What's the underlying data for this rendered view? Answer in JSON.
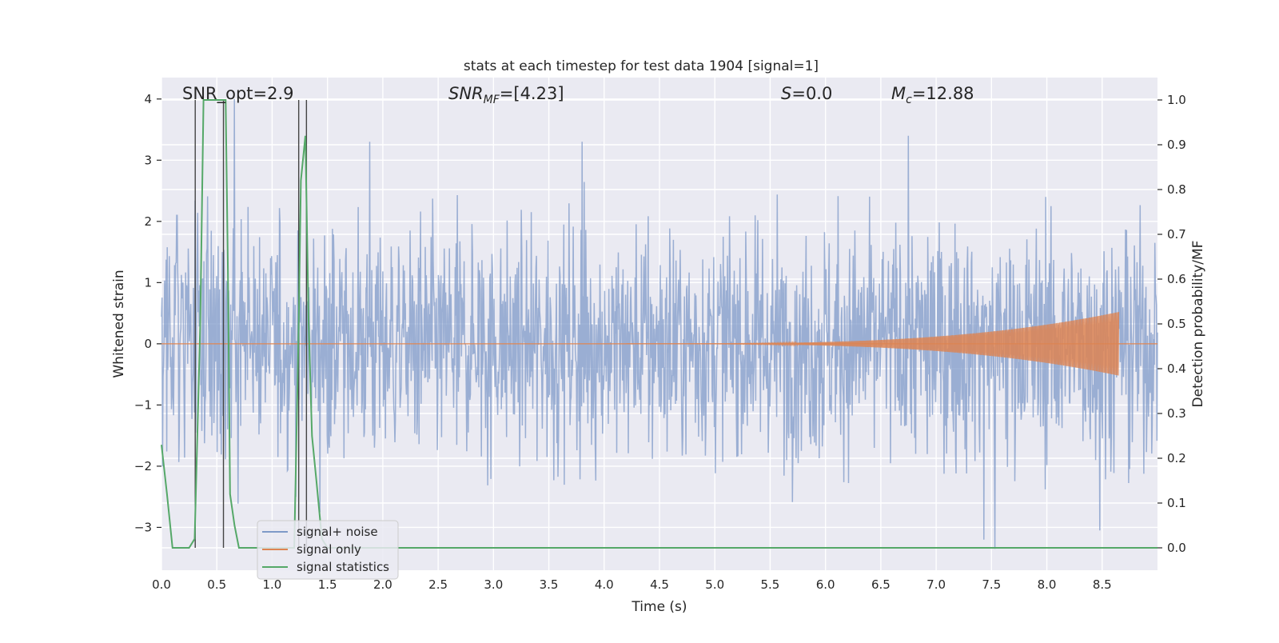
{
  "chart_data": {
    "type": "line",
    "title": "stats at each timestep for test data 1904 [signal=1]",
    "xlabel": "Time (s)",
    "ylabel_left": "Whitened strain",
    "ylabel_right": "Detection probability/MF",
    "xlim": [
      0.0,
      9.0
    ],
    "ylim_left": [
      -3.7,
      4.35
    ],
    "ylim_right": [
      -0.05,
      1.05
    ],
    "x_ticks": [
      "0.0",
      "0.5",
      "1.0",
      "1.5",
      "2.0",
      "2.5",
      "3.0",
      "3.5",
      "4.0",
      "4.5",
      "5.0",
      "5.5",
      "6.0",
      "6.5",
      "7.0",
      "7.5",
      "8.0",
      "8.5"
    ],
    "y_ticks_left": [
      "−3",
      "−2",
      "−1",
      "0",
      "1",
      "2",
      "3",
      "4"
    ],
    "y_ticks_right": [
      "0.0",
      "0.1",
      "0.2",
      "0.3",
      "0.4",
      "0.5",
      "0.6",
      "0.7",
      "0.8",
      "0.9",
      "1.0"
    ],
    "annotations": {
      "snr_opt": "SNR_opt=2.9",
      "snr_mf_prefix": "SNR",
      "snr_mf_sub": "MF",
      "snr_mf_value": "=[4.23]",
      "s_prefix": "S",
      "s_value": "=0.0",
      "mc_prefix": "M",
      "mc_sub": "c",
      "mc_value": "=12.88"
    },
    "vertical_markers_x": [
      0.305,
      0.56,
      1.24,
      1.31
    ],
    "series": [
      {
        "name": "signal+ noise",
        "color": "#7f9ac8",
        "axis": "left",
        "kind": "noise",
        "x_range": [
          0.0,
          9.0
        ],
        "noise_std": 0.95,
        "peak_times": [
          0.14,
          0.66,
          1.88,
          3.8,
          6.75,
          7.53,
          7.43,
          8.48
        ],
        "peak_values": [
          2.1,
          4.0,
          3.3,
          3.3,
          3.4,
          -3.35,
          -3.2,
          -3.05
        ]
      },
      {
        "name": "signal only",
        "color": "#dd8452",
        "axis": "left",
        "kind": "chirp",
        "start": 4.2,
        "end": 8.65,
        "max_amplitude": 0.52
      },
      {
        "name": "signal statistics",
        "color": "#55a868",
        "axis": "right",
        "kind": "line",
        "x": [
          0.0,
          0.05,
          0.1,
          0.25,
          0.3,
          0.35,
          0.38,
          0.42,
          0.5,
          0.58,
          0.6,
          0.62,
          0.66,
          0.7,
          0.75,
          1.0,
          1.2,
          1.24,
          1.26,
          1.3,
          1.33,
          1.36,
          1.4,
          1.45,
          1.5,
          9.0
        ],
        "y": [
          0.23,
          0.12,
          0.0,
          0.0,
          0.02,
          0.5,
          1.0,
          1.0,
          1.0,
          1.0,
          0.62,
          0.12,
          0.05,
          0.0,
          0.0,
          0.0,
          0.0,
          0.5,
          0.82,
          0.92,
          0.5,
          0.25,
          0.15,
          0.02,
          0.0,
          0.0
        ]
      }
    ],
    "legend_location": "lower-left"
  }
}
